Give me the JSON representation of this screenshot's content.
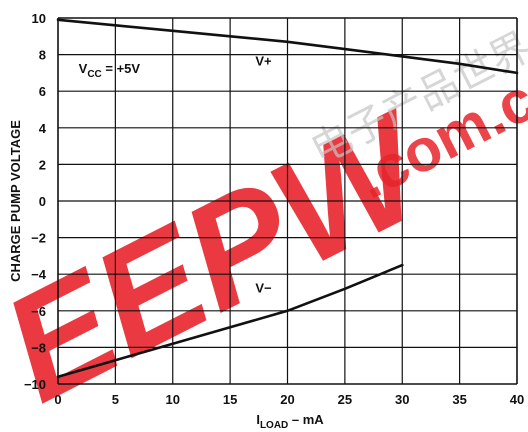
{
  "chart_data": {
    "type": "line",
    "title": "",
    "xlabel": {
      "main": "I",
      "sub": "LOAD",
      "rest": " – mA"
    },
    "ylabel": "CHARGE PUMP  VOLTAGE",
    "xlim": [
      0,
      40
    ],
    "ylim": [
      -10,
      10
    ],
    "x_ticks": [
      "0",
      "5",
      "10",
      "15",
      "20",
      "25",
      "30",
      "35",
      "40"
    ],
    "y_ticks": [
      "10",
      "8",
      "6",
      "4",
      "2",
      "0",
      "−2",
      "−4",
      "−6",
      "−8",
      "−10"
    ],
    "grid": true,
    "series": [
      {
        "name": "V+",
        "x": [
          0,
          5,
          10,
          15,
          20,
          25,
          30,
          35,
          40
        ],
        "y": [
          9.9,
          9.6,
          9.3,
          9.0,
          8.7,
          8.3,
          7.9,
          7.5,
          7.0
        ]
      },
      {
        "name": "V−",
        "x": [
          0,
          5,
          10,
          15,
          20,
          25,
          30
        ],
        "y": [
          -9.6,
          -8.7,
          -7.8,
          -6.9,
          -6.0,
          -4.8,
          -3.5
        ]
      }
    ],
    "annotations": [
      {
        "main": "V",
        "sub": "CC",
        "rest": " = +5V",
        "x": 1.8,
        "y": 7.0
      },
      {
        "text": "V+",
        "x": 17.2,
        "y": 7.4
      },
      {
        "text": "V−",
        "x": 17.2,
        "y": -5.0
      }
    ],
    "colors": {
      "line": "#111111",
      "grid": "#111111",
      "watermark": "#e8232b"
    },
    "watermark": {
      "logo": "EEPW",
      "domain": ".com.cn",
      "chinese": "电子产品世界"
    }
  }
}
